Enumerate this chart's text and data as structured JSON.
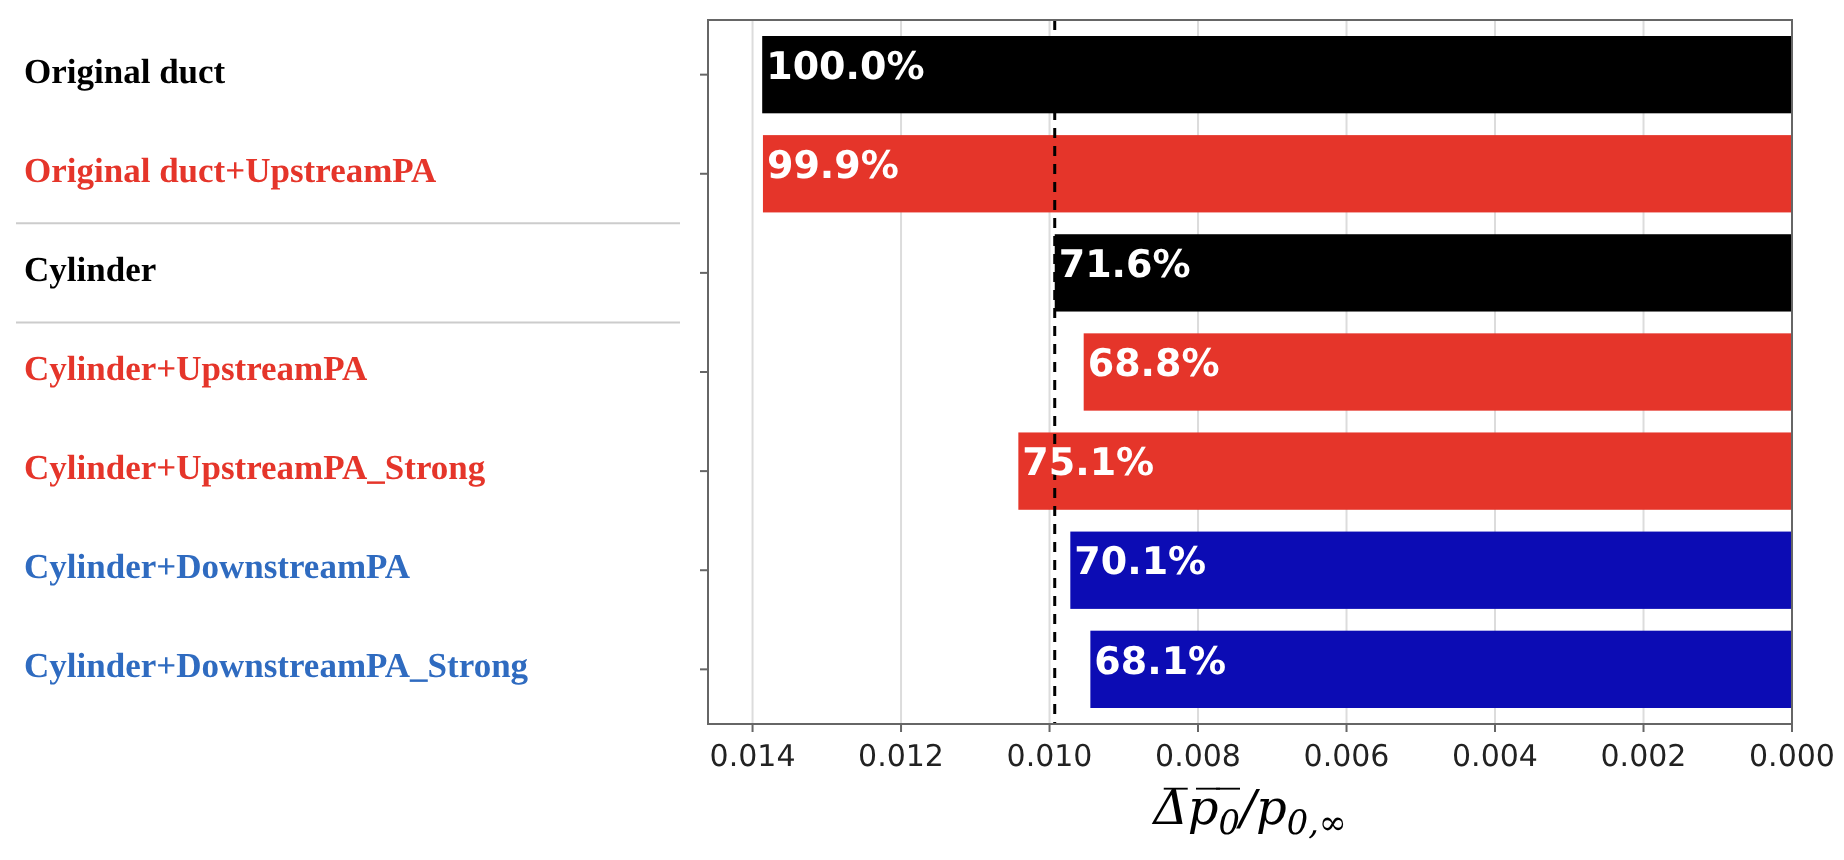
{
  "chart_data": {
    "type": "bar",
    "orientation": "horizontal",
    "categories": [
      "Original duct",
      "Original duct+UpstreamPA",
      "Cylinder",
      "Cylinder+UpstreamPA",
      "Cylinder+UpstreamPA_Strong",
      "Cylinder+DownstreamPA",
      "Cylinder+DownstreamPA_Strong"
    ],
    "values": [
      0.01387,
      0.01386,
      0.00993,
      0.00954,
      0.01042,
      0.00972,
      0.00945
    ],
    "colors": [
      "#000000",
      "#e5352a",
      "#000000",
      "#e5352a",
      "#e5352a",
      "#0c0cb4",
      "#0c0cb4"
    ],
    "annotations": [
      {
        "text": "100.0%",
        "x": 0.01387,
        "y": "Original duct"
      },
      {
        "text": "99.9%",
        "x": 0.01386,
        "y": "Original duct+UpstreamPA"
      },
      {
        "text": "71.6%",
        "x": 0.00993,
        "y": "Cylinder"
      },
      {
        "text": "68.8%",
        "x": 0.00954,
        "y": "Cylinder+UpstreamPA"
      },
      {
        "text": "75.1%",
        "x": 0.01042,
        "y": "Cylinder+UpstreamPA_Strong"
      },
      {
        "text": "70.1%",
        "x": 0.00972,
        "y": "Cylinder+DownstreamPA"
      },
      {
        "text": "68.1%",
        "x": 0.00945,
        "y": "Cylinder+DownstreamPA_Strong"
      }
    ],
    "xlim": [
      0.0146,
      0
    ],
    "xticks": [
      {
        "value": 0.014,
        "label": "0.014"
      },
      {
        "value": 0.012,
        "label": "0.012"
      },
      {
        "value": 0.01,
        "label": "0.010"
      },
      {
        "value": 0.008,
        "label": "0.008"
      },
      {
        "value": 0.006,
        "label": "0.006"
      },
      {
        "value": 0.004,
        "label": "0.004"
      },
      {
        "value": 0.002,
        "label": "0.002"
      },
      {
        "value": 0,
        "label": "0.000"
      }
    ],
    "xlabel": "Δ̅p̅$_{0}$̅/p$_{0,∞}$",
    "ref_lines": [
      {
        "axis": "x",
        "value": 0.00993,
        "color": "#000000",
        "line_style": "dashed"
      }
    ],
    "grid": "x"
  }
}
